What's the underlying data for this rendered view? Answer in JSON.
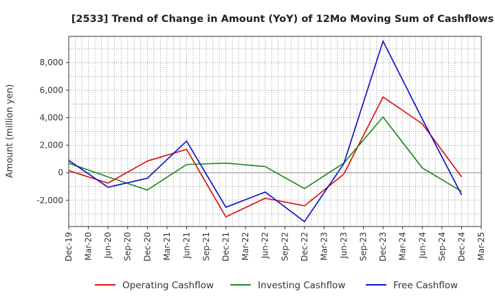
{
  "chart_data": {
    "type": "line",
    "title": "[2533]  Trend of Change in Amount (YoY) of 12Mo Moving Sum of Cashflows",
    "xlabel": "",
    "ylabel": "Amount (million yen)",
    "ylim": [
      -3900,
      9900
    ],
    "yticks": [
      -2000,
      0,
      2000,
      4000,
      6000,
      8000
    ],
    "ytick_labels": [
      "-2,000",
      "0",
      "2,000",
      "4,000",
      "6,000",
      "8,000"
    ],
    "categories": [
      "Dec-19",
      "Mar-20",
      "Jun-20",
      "Sep-20",
      "Dec-20",
      "Mar-21",
      "Jun-21",
      "Sep-21",
      "Dec-21",
      "Mar-22",
      "Jun-22",
      "Sep-22",
      "Dec-22",
      "Mar-23",
      "Jun-23",
      "Sep-23",
      "Dec-23",
      "Mar-24",
      "Jun-24",
      "Sep-24",
      "Dec-24",
      "Mar-25"
    ],
    "grid": true,
    "legend_position": "bottom",
    "series": [
      {
        "name": "Operating Cashflow",
        "color": "#dd1111",
        "points": [
          {
            "x": "Dec-19",
            "y": 150
          },
          {
            "x": "Jun-20",
            "y": -750
          },
          {
            "x": "Dec-20",
            "y": 850
          },
          {
            "x": "Jun-21",
            "y": 1700
          },
          {
            "x": "Dec-21",
            "y": -3200
          },
          {
            "x": "Jun-22",
            "y": -1850
          },
          {
            "x": "Dec-22",
            "y": -2400
          },
          {
            "x": "Jun-23",
            "y": -100
          },
          {
            "x": "Dec-23",
            "y": 5500
          },
          {
            "x": "Jun-24",
            "y": 3550
          },
          {
            "x": "Dec-24",
            "y": -300
          }
        ]
      },
      {
        "name": "Investing Cashflow",
        "color": "#228822",
        "points": [
          {
            "x": "Dec-19",
            "y": 700
          },
          {
            "x": "Jun-20",
            "y": -300
          },
          {
            "x": "Dec-20",
            "y": -1250
          },
          {
            "x": "Jun-21",
            "y": 600
          },
          {
            "x": "Dec-21",
            "y": 700
          },
          {
            "x": "Jun-22",
            "y": 450
          },
          {
            "x": "Dec-22",
            "y": -1150
          },
          {
            "x": "Jun-23",
            "y": 700
          },
          {
            "x": "Dec-23",
            "y": 4050
          },
          {
            "x": "Jun-24",
            "y": 350
          },
          {
            "x": "Dec-24",
            "y": -1350
          }
        ]
      },
      {
        "name": "Free Cashflow",
        "color": "#1111cc",
        "points": [
          {
            "x": "Dec-19",
            "y": 900
          },
          {
            "x": "Jun-20",
            "y": -1050
          },
          {
            "x": "Dec-20",
            "y": -400
          },
          {
            "x": "Jun-21",
            "y": 2300
          },
          {
            "x": "Dec-21",
            "y": -2500
          },
          {
            "x": "Jun-22",
            "y": -1400
          },
          {
            "x": "Dec-22",
            "y": -3550
          },
          {
            "x": "Jun-23",
            "y": 650
          },
          {
            "x": "Dec-23",
            "y": 9550
          },
          {
            "x": "Jun-24",
            "y": 3900
          },
          {
            "x": "Dec-24",
            "y": -1600
          }
        ]
      }
    ]
  }
}
